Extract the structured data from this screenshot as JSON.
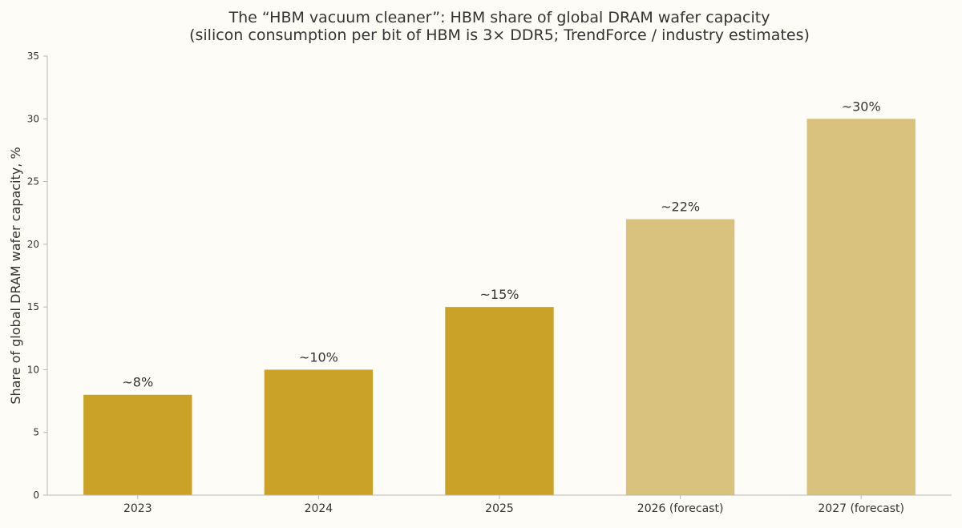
{
  "chart_data": {
    "type": "bar",
    "title_lines": [
      "The “HBM vacuum cleaner”: HBM share of global DRAM wafer capacity",
      "(silicon consumption per bit of HBM is 3× DDR5; TrendForce / industry estimates)"
    ],
    "xlabel": "",
    "ylabel": "Share of global DRAM wafer capacity, %",
    "categories": [
      "2023",
      "2024",
      "2025",
      "2026 (forecast)",
      "2027 (forecast)"
    ],
    "values": [
      8,
      10,
      15,
      22,
      30
    ],
    "data_labels": [
      "~8%",
      "~10%",
      "~15%",
      "~22%",
      "~30%"
    ],
    "forecast": [
      false,
      false,
      false,
      true,
      true
    ],
    "ylim": [
      0,
      35
    ],
    "yticks": [
      0,
      5,
      10,
      15,
      20,
      25,
      30,
      35
    ],
    "grid": false,
    "colors": {
      "actual": "#c9a227",
      "forecast": "#d9c27d",
      "background": "#fdfcf6"
    }
  }
}
